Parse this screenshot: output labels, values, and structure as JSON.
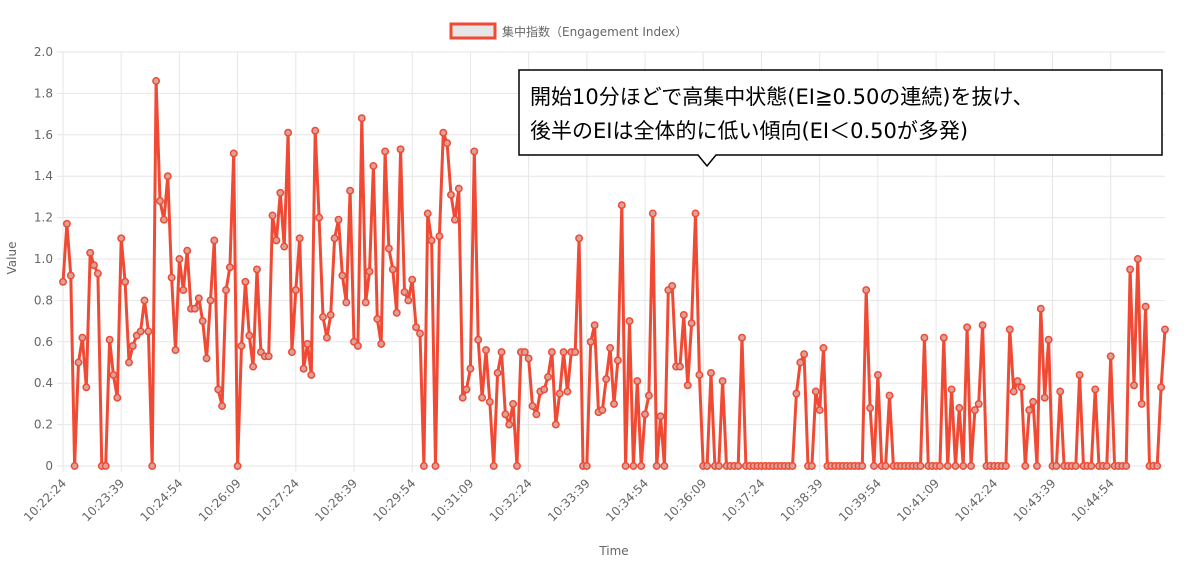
{
  "chart_data": {
    "type": "line",
    "legend": {
      "label": "集中指数（Engagement Index）",
      "position": "top-center"
    },
    "xlabel": "Time",
    "ylabel": "Value",
    "ylim": [
      0,
      2.0
    ],
    "y_ticks": [
      "0",
      "0.2",
      "0.4",
      "0.6",
      "0.8",
      "1.0",
      "1.2",
      "1.4",
      "1.6",
      "1.8",
      "2.0"
    ],
    "x_ticks": [
      "10:22:24",
      "10:23:39",
      "10:24:54",
      "10:26:09",
      "10:27:24",
      "10:28:39",
      "10:29:54",
      "10:31:09",
      "10:32:24",
      "10:33:39",
      "10:34:54",
      "10:36:09",
      "10:37:24",
      "10:38:39",
      "10:39:54",
      "10:41:09",
      "10:42:24",
      "10:43:39",
      "10:44:54"
    ],
    "grid": true,
    "colors": {
      "line": "#f04a34",
      "point_fill": "#d9a39b",
      "grid": "#e6e6e6"
    },
    "annotation": {
      "lines": [
        "開始10分ほどで高集中状態(EI≧0.50の連続)を抜け、",
        "後半のEIは全体的に低い傾向(EI＜0.50が多発)"
      ]
    },
    "series": [
      {
        "name": "集中指数（Engagement Index）",
        "values": [
          0.89,
          1.17,
          0.92,
          0.0,
          0.5,
          0.62,
          0.38,
          1.03,
          0.97,
          0.93,
          0.0,
          0.0,
          0.61,
          0.44,
          0.33,
          1.1,
          0.89,
          0.5,
          0.58,
          0.63,
          0.65,
          0.8,
          0.65,
          0.0,
          1.86,
          1.28,
          1.19,
          1.4,
          0.91,
          0.56,
          1.0,
          0.85,
          1.04,
          0.76,
          0.76,
          0.81,
          0.7,
          0.52,
          0.8,
          1.09,
          0.37,
          0.29,
          0.85,
          0.96,
          1.51,
          0.0,
          0.58,
          0.89,
          0.63,
          0.48,
          0.95,
          0.55,
          0.53,
          0.53,
          1.21,
          1.09,
          1.32,
          1.06,
          1.61,
          0.55,
          0.85,
          1.1,
          0.47,
          0.59,
          0.44,
          1.62,
          1.2,
          0.72,
          0.62,
          0.73,
          1.1,
          1.19,
          0.92,
          0.79,
          1.33,
          0.6,
          0.58,
          1.68,
          0.79,
          0.94,
          1.45,
          0.71,
          0.59,
          1.52,
          1.05,
          0.95,
          0.74,
          1.53,
          0.84,
          0.8,
          0.9,
          0.67,
          0.64,
          0.0,
          1.22,
          1.09,
          0.0,
          1.11,
          1.61,
          1.56,
          1.31,
          1.19,
          1.34,
          0.33,
          0.37,
          0.47,
          1.52,
          0.61,
          0.33,
          0.56,
          0.31,
          0.0,
          0.45,
          0.55,
          0.25,
          0.2,
          0.3,
          0.0,
          0.55,
          0.55,
          0.52,
          0.29,
          0.25,
          0.36,
          0.37,
          0.43,
          0.55,
          0.2,
          0.35,
          0.55,
          0.36,
          0.55,
          0.55,
          1.1,
          0.0,
          0.0,
          0.6,
          0.68,
          0.26,
          0.27,
          0.42,
          0.57,
          0.3,
          0.51,
          1.26,
          0.0,
          0.7,
          0.0,
          0.41,
          0.0,
          0.25,
          0.34,
          1.22,
          0.0,
          0.24,
          0.0,
          0.85,
          0.87,
          0.48,
          0.48,
          0.73,
          0.39,
          0.69,
          1.22,
          0.44,
          0.0,
          0.0,
          0.45,
          0.0,
          0.0,
          0.41,
          0.0,
          0.0,
          0.0,
          0.0,
          0.62,
          0.0,
          0.0,
          0.0,
          0.0,
          0.0,
          0.0,
          0.0,
          0.0,
          0.0,
          0.0,
          0.0,
          0.0,
          0.0,
          0.35,
          0.5,
          0.54,
          0.0,
          0.0,
          0.36,
          0.27,
          0.57,
          0.0,
          0.0,
          0.0,
          0.0,
          0.0,
          0.0,
          0.0,
          0.0,
          0.0,
          0.0,
          0.85,
          0.28,
          0.0,
          0.44,
          0.0,
          0.0,
          0.34,
          0.0,
          0.0,
          0.0,
          0.0,
          0.0,
          0.0,
          0.0,
          0.0,
          0.62,
          0.0,
          0.0,
          0.0,
          0.0,
          0.62,
          0.0,
          0.37,
          0.0,
          0.28,
          0.0,
          0.67,
          0.0,
          0.27,
          0.3,
          0.68,
          0.0,
          0.0,
          0.0,
          0.0,
          0.0,
          0.0,
          0.66,
          0.36,
          0.41,
          0.38,
          0.0,
          0.27,
          0.31,
          0.0,
          0.76,
          0.33,
          0.61,
          0.0,
          0.0,
          0.36,
          0.0,
          0.0,
          0.0,
          0.0,
          0.44,
          0.0,
          0.0,
          0.0,
          0.37,
          0.0,
          0.0,
          0.0,
          0.53,
          0.0,
          0.0,
          0.0,
          0.0,
          0.95,
          0.39,
          1.0,
          0.3,
          0.77,
          0.0,
          0.0,
          0.0,
          0.38,
          0.66
        ]
      }
    ]
  }
}
